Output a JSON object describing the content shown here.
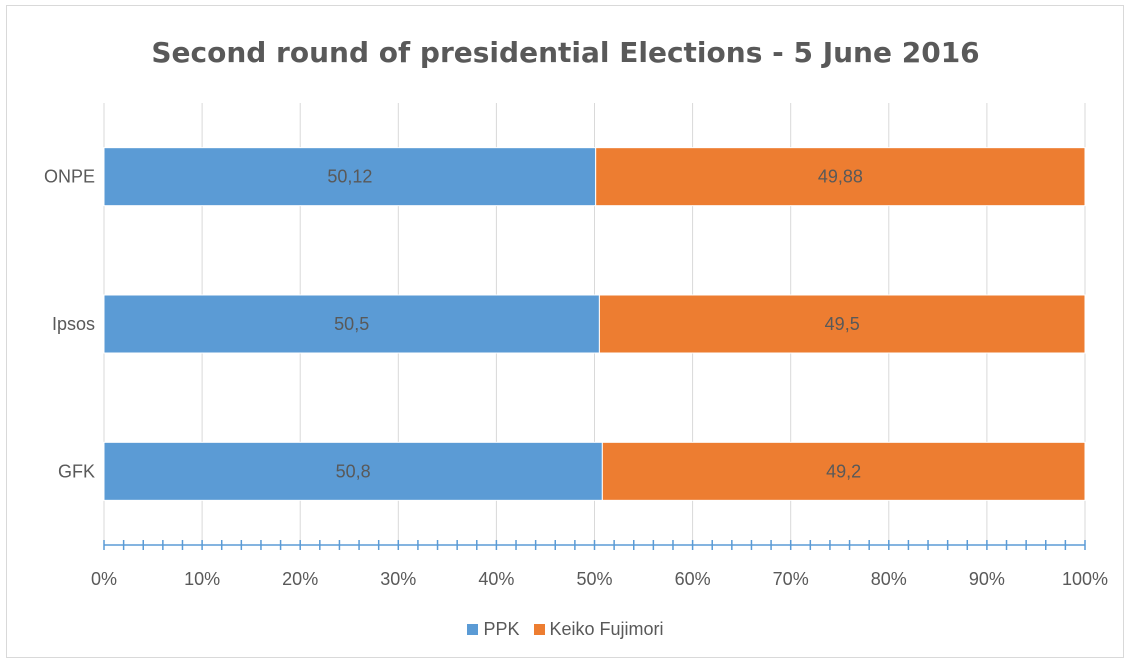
{
  "chart_data": {
    "type": "bar",
    "orientation": "horizontal",
    "stacked": "100%",
    "title": "Second round of presidential Elections - 5 June 2016",
    "categories": [
      "ONPE",
      "Ipsos",
      "GFK"
    ],
    "series": [
      {
        "name": "PPK",
        "color": "#5b9bd5",
        "values": [
          50.12,
          50.5,
          50.8
        ],
        "labels": [
          "50,12",
          "50,5",
          "50,8"
        ]
      },
      {
        "name": "Keiko Fujimori",
        "color": "#ed7d31",
        "values": [
          49.88,
          49.5,
          49.2
        ],
        "labels": [
          "49,88",
          "49,5",
          "49,2"
        ]
      }
    ],
    "x_ticks": [
      "0%",
      "10%",
      "20%",
      "30%",
      "40%",
      "50%",
      "60%",
      "70%",
      "80%",
      "90%",
      "100%"
    ],
    "xlim": [
      0,
      100
    ],
    "grid": true,
    "legend_position": "bottom"
  }
}
